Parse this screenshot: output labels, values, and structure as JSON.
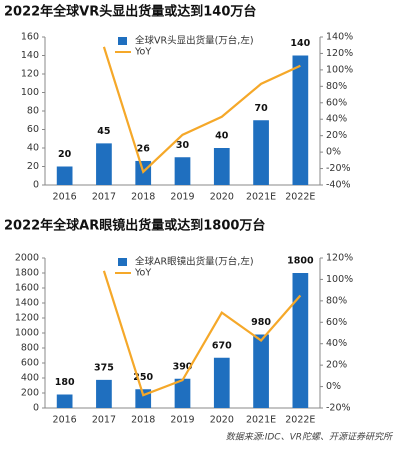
{
  "chart_data": [
    {
      "type": "bar",
      "title": "2022年全球VR头显出货量或达到140万台",
      "categories": [
        "2016",
        "2017",
        "2018",
        "2019",
        "2020",
        "2021E",
        "2022E"
      ],
      "series": [
        {
          "name": "全球VR头显出货量(万台,左)",
          "color": "#1f6fbf",
          "values": [
            20,
            45,
            26,
            30,
            40,
            70,
            140
          ]
        },
        {
          "name": "YoY",
          "color": "#f5a829",
          "axis": "y2",
          "values": [
            null,
            128,
            -24,
            21,
            43,
            83,
            105
          ]
        }
      ],
      "ylim": [
        0,
        160
      ],
      "yticks": [
        0,
        20,
        40,
        60,
        80,
        100,
        120,
        140,
        160
      ],
      "y2lim": [
        -40,
        140
      ],
      "y2ticks": [
        {
          "value": -40,
          "label": "-40%"
        },
        {
          "value": -20,
          "label": "-20%"
        },
        {
          "value": 0,
          "label": "0%"
        },
        {
          "value": 20,
          "label": "20%"
        },
        {
          "value": 40,
          "label": "40%"
        },
        {
          "value": 60,
          "label": "60%"
        },
        {
          "value": 80,
          "label": "80%"
        },
        {
          "value": 100,
          "label": "100%"
        },
        {
          "value": 120,
          "label": "120%"
        },
        {
          "value": 140,
          "label": "140%"
        }
      ]
    },
    {
      "type": "bar",
      "title": "2022年全球AR眼镜出货量或达到1800万台",
      "categories": [
        "2016",
        "2017",
        "2018",
        "2019",
        "2020",
        "2021E",
        "2022E"
      ],
      "series": [
        {
          "name": "全球AR眼镜出货量(万台,左)",
          "color": "#1f6fbf",
          "values": [
            180,
            375,
            250,
            390,
            670,
            980,
            1800
          ]
        },
        {
          "name": "YoY",
          "color": "#f5a829",
          "axis": "y2",
          "values": [
            null,
            108,
            -8,
            6,
            69,
            43,
            85
          ]
        }
      ],
      "ylim": [
        0,
        2000
      ],
      "yticks": [
        0,
        200,
        400,
        600,
        800,
        1000,
        1200,
        1400,
        1600,
        1800,
        2000
      ],
      "y2lim": [
        -20,
        120
      ],
      "y2ticks": [
        {
          "value": -20,
          "label": "-20%"
        },
        {
          "value": 0,
          "label": "0%"
        },
        {
          "value": 20,
          "label": "20%"
        },
        {
          "value": 40,
          "label": "40%"
        },
        {
          "value": 60,
          "label": "60%"
        },
        {
          "value": 80,
          "label": "80%"
        },
        {
          "value": 100,
          "label": "100%"
        },
        {
          "value": 120,
          "label": "120%"
        }
      ]
    }
  ],
  "source": "数据来源:IDC、VR陀螺、开源证券研究所"
}
